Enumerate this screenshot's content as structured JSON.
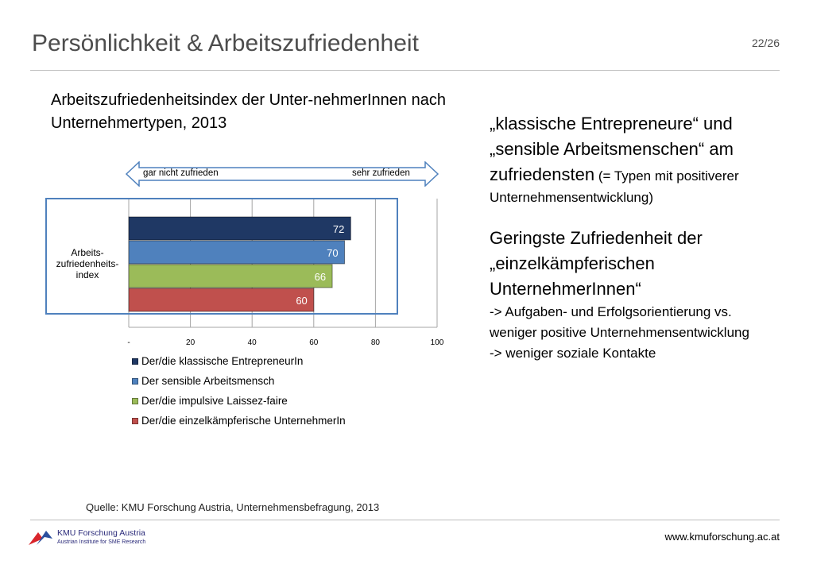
{
  "slide": {
    "title": "Persönlichkeit & Arbeitszufriedenheit",
    "page": "22/26",
    "chart_heading": "Arbeitszufriedenheitsindex der Unter-nehmerInnen nach Unternehmertypen, 2013",
    "scale_left": "gar nicht zufrieden",
    "scale_right": "sehr zufrieden",
    "right": {
      "p1_big": "„klassische Entrepreneure“ und „sensible Arbeitsmenschen“ am zufriedensten",
      "p1_small_inline": " (= Typen mit positiverer Unternehmensentwicklung)",
      "p2_big": "Geringste Zufriedenheit der „einzelkämpferischen UnternehmerInnen“",
      "p2_line1": "-> Aufgaben- und Erfolgsorientierung vs. weniger positive Unternehmensentwicklung",
      "p2_line2": "-> weniger soziale Kontakte"
    },
    "source": "Quelle: KMU Forschung Austria, Unternehmensbefragung, 2013",
    "url": "www.kmuforschung.ac.at",
    "logo_name": "KMU Forschung Austria",
    "logo_sub": "Austrian Institute for SME Research"
  },
  "chart_data": {
    "type": "bar",
    "orientation": "horizontal",
    "category_label_lines": [
      "Arbeits-",
      "zufriedenheits-",
      "index"
    ],
    "xlim": [
      0,
      100
    ],
    "x_ticks": [
      "-",
      "20",
      "40",
      "60",
      "80",
      "100"
    ],
    "grid": true,
    "legend_position": "bottom",
    "series": [
      {
        "name": "Der/die klassische EntrepreneurIn",
        "value": 72,
        "color": "#1f3864"
      },
      {
        "name": "Der sensible Arbeitsmensch",
        "value": 70,
        "color": "#4f81bd"
      },
      {
        "name": "Der/die impulsive Laissez-faire",
        "value": 66,
        "color": "#9bbb59"
      },
      {
        "name": "Der/die einzelkämpferische UnternehmerIn",
        "value": 60,
        "color": "#c0504d"
      }
    ]
  }
}
